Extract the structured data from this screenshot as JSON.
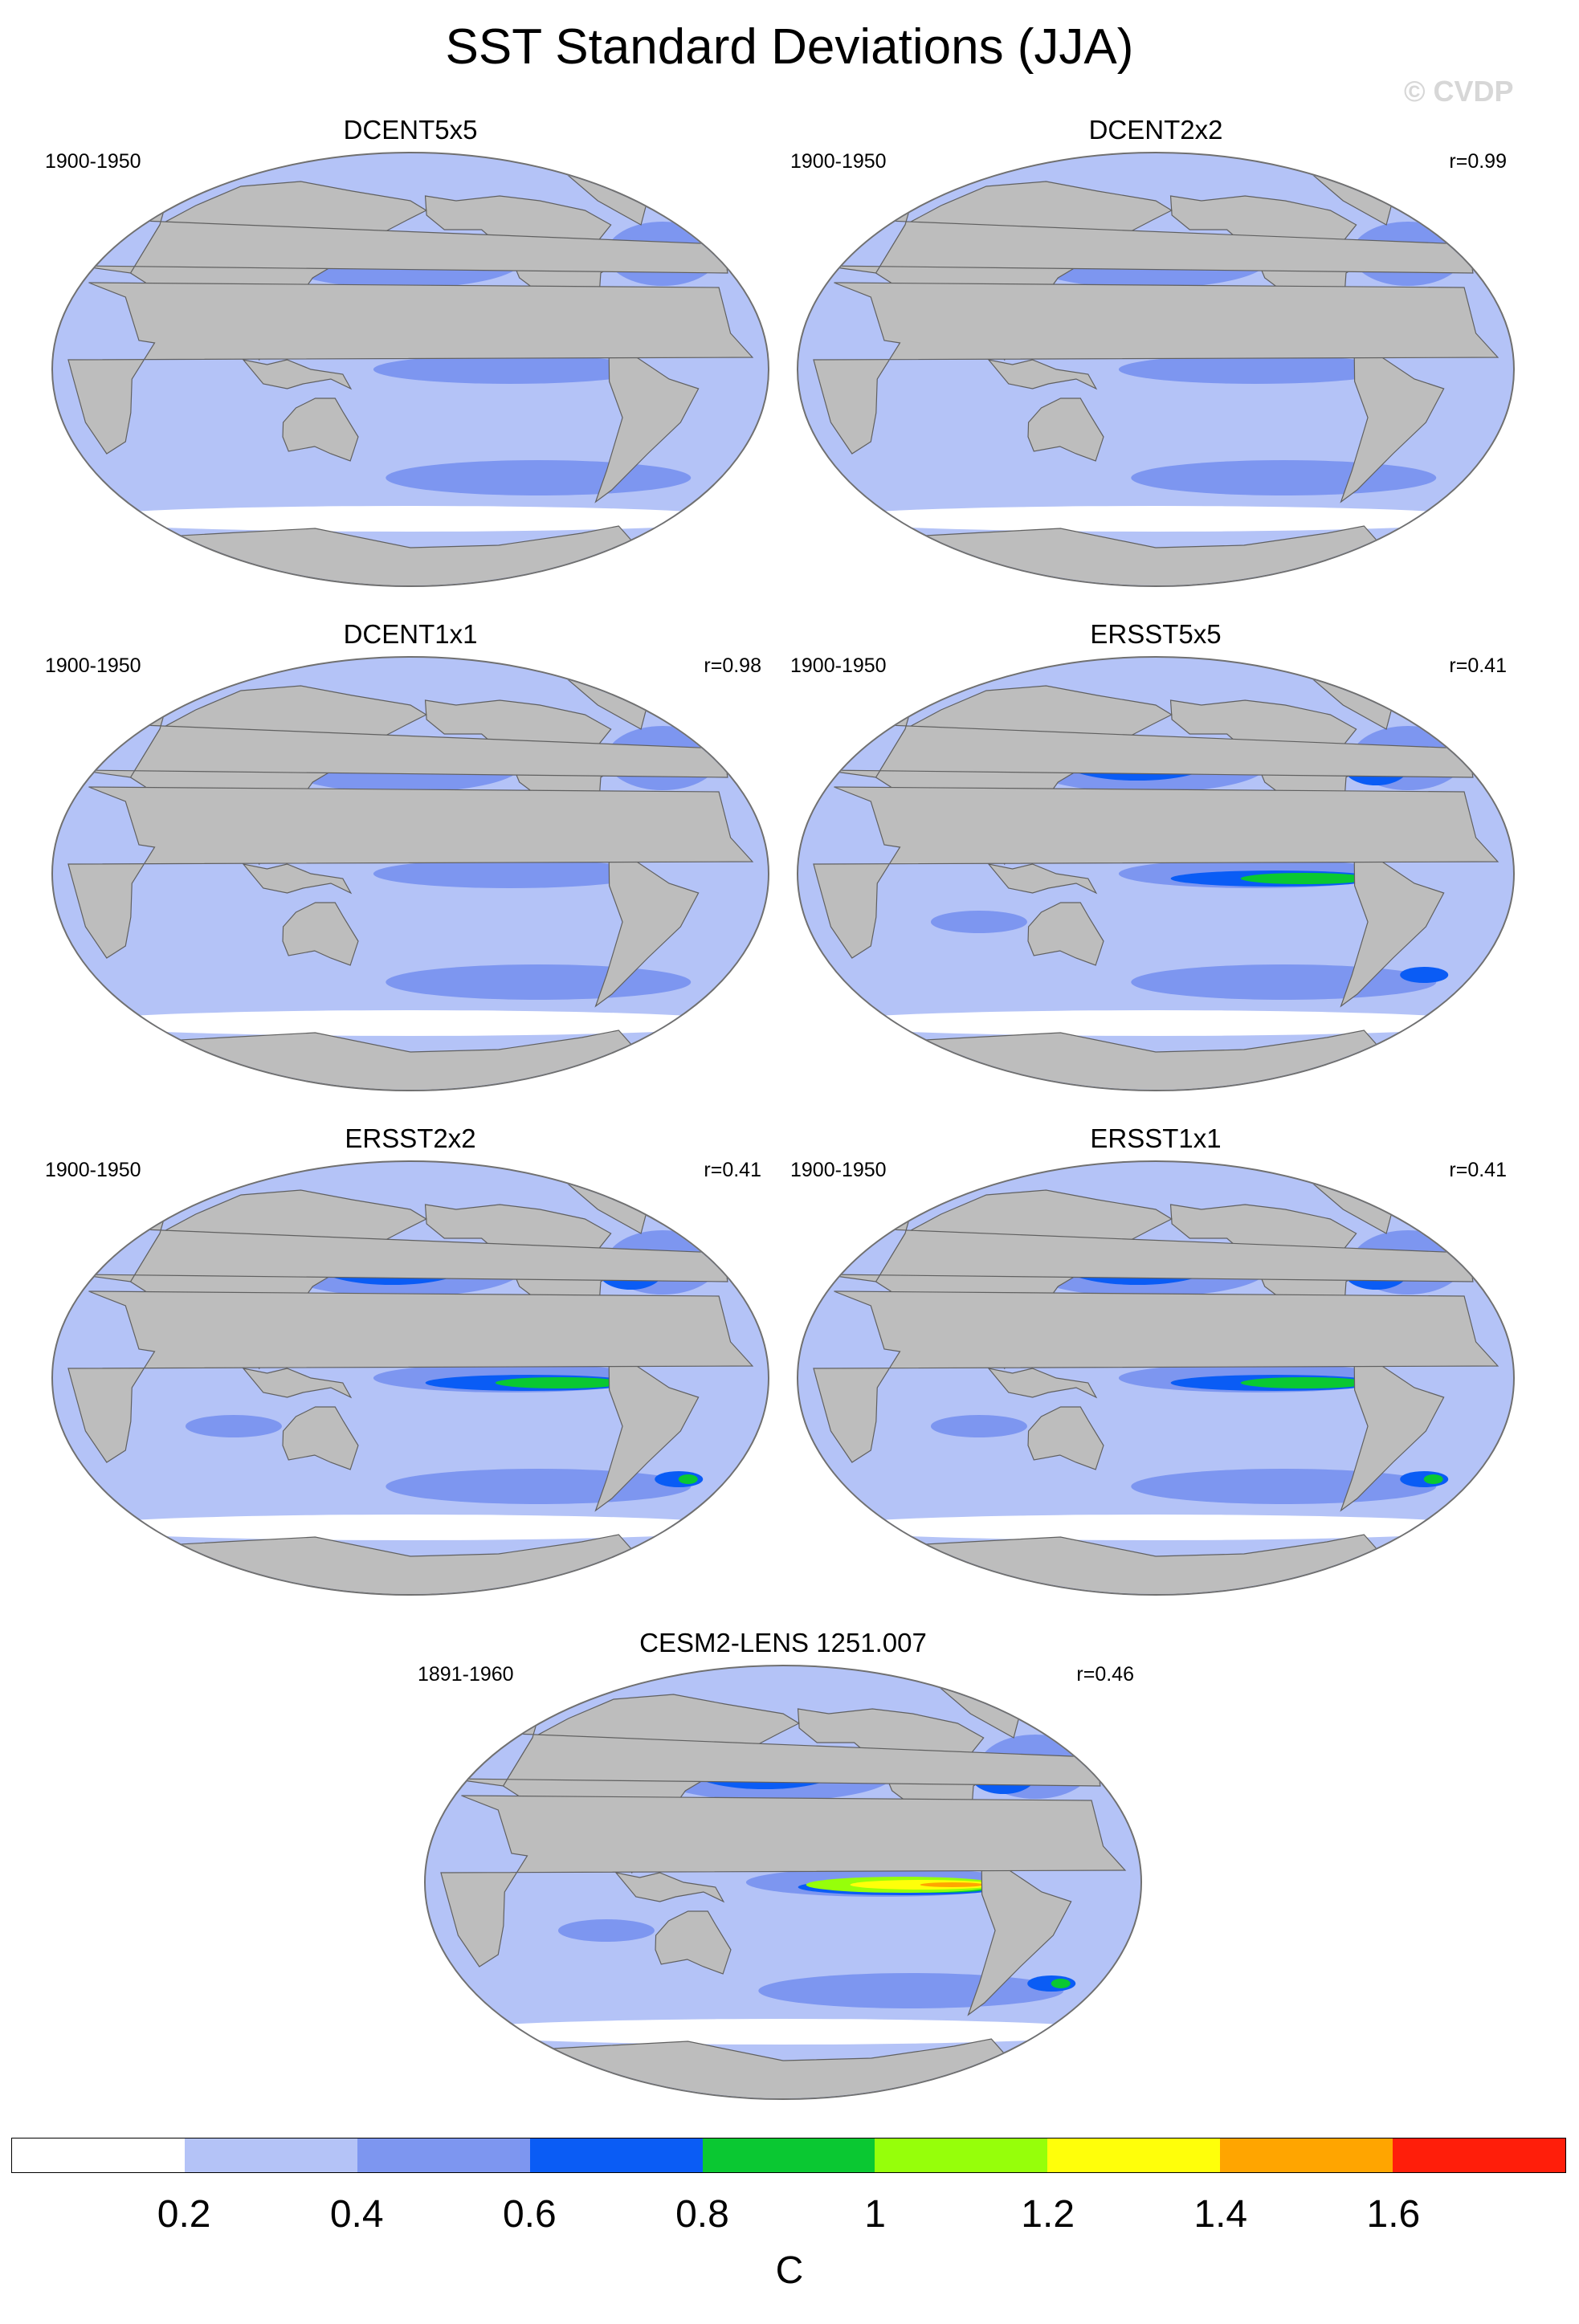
{
  "figure": {
    "title": "SST Standard Deviations (JJA)",
    "watermark": "© CVDP"
  },
  "panels": [
    {
      "title": "DCENT5x5",
      "period": "1900-1950",
      "corr": "",
      "intensity": 0.2
    },
    {
      "title": "DCENT2x2",
      "period": "1900-1950",
      "corr": "r=0.99",
      "intensity": 0.22
    },
    {
      "title": "DCENT1x1",
      "period": "1900-1950",
      "corr": "r=0.98",
      "intensity": 0.22
    },
    {
      "title": "ERSST5x5",
      "period": "1900-1950",
      "corr": "r=0.41",
      "intensity": 0.55
    },
    {
      "title": "ERSST2x2",
      "period": "1900-1950",
      "corr": "r=0.41",
      "intensity": 0.7
    },
    {
      "title": "ERSST1x1",
      "period": "1900-1950",
      "corr": "r=0.41",
      "intensity": 0.72
    },
    {
      "title": "CESM2-LENS 1251.007",
      "period": "1891-1960",
      "corr": "r=0.46",
      "intensity": 1.0
    }
  ],
  "colorbar": {
    "unit": "C",
    "ticks": [
      "0.2",
      "0.4",
      "0.6",
      "0.8",
      "1",
      "1.2",
      "1.4",
      "1.6"
    ],
    "colors": [
      "#ffffff",
      "#b4c3f7",
      "#7d96f0",
      "#0a5cf5",
      "#0ac832",
      "#96ff0a",
      "#ffff0a",
      "#ffa500",
      "#ff1e0a"
    ]
  },
  "colors": {
    "land": "#bdbdbd",
    "coast": "#606060"
  }
}
